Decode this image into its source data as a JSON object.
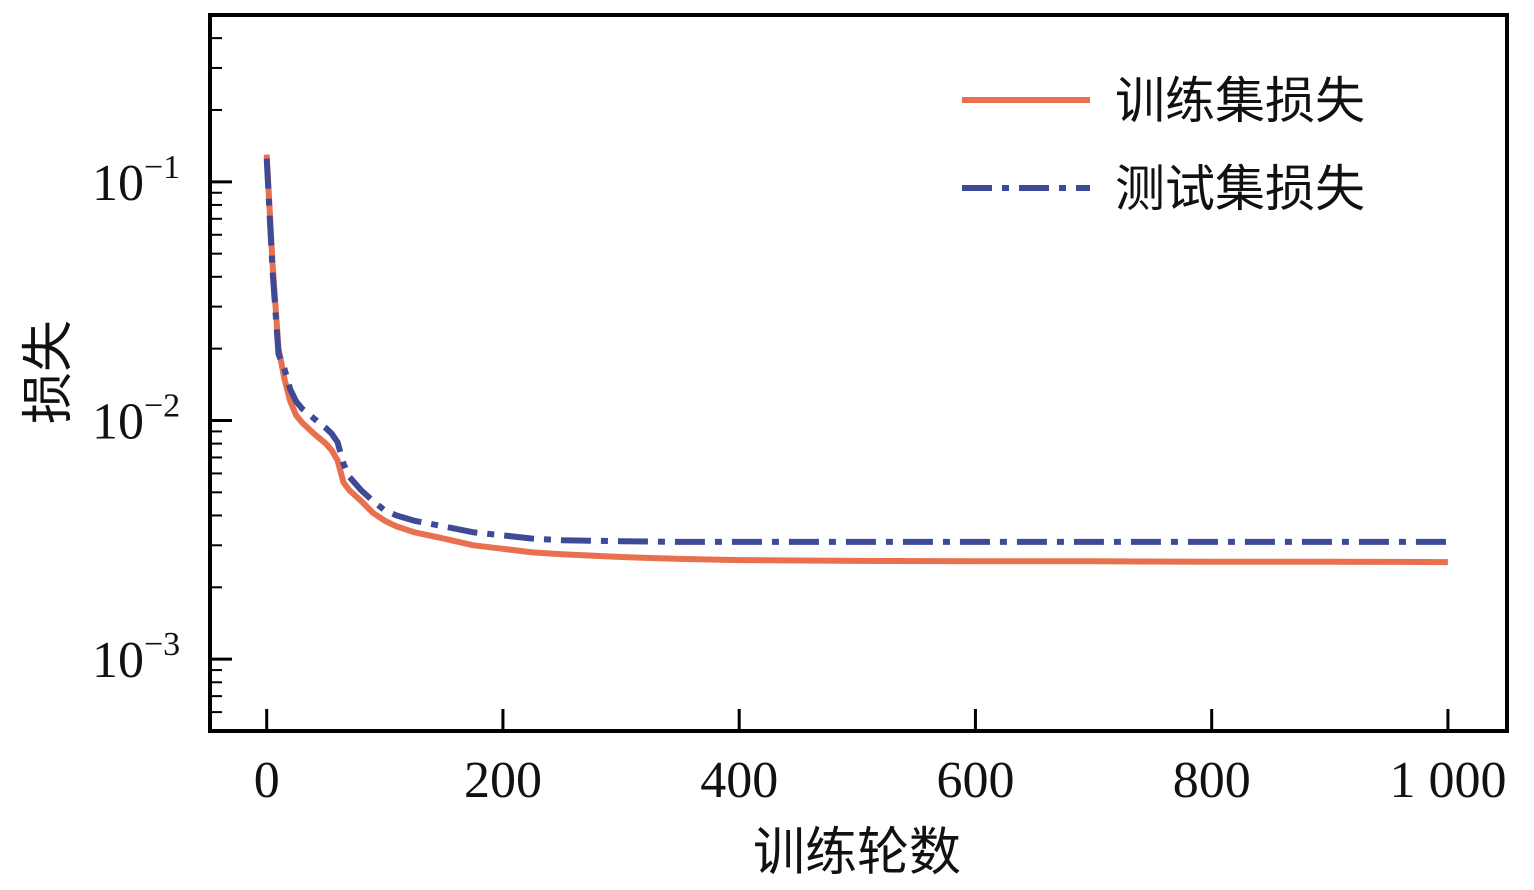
{
  "chart_data": {
    "type": "line",
    "xlabel": "训练轮数",
    "ylabel": "损失",
    "x_scale": "linear",
    "y_scale": "log",
    "xlim": [
      -48,
      1050
    ],
    "ylim": [
      0.0005,
      0.5
    ],
    "x_ticks": [
      0,
      200,
      400,
      600,
      800,
      1000
    ],
    "x_tick_labels": [
      "0",
      "200",
      "400",
      "600",
      "800",
      "1 000"
    ],
    "y_ticks": [
      {
        "value": 0.1,
        "base": "10",
        "exp": "−1"
      },
      {
        "value": 0.01,
        "base": "10",
        "exp": "−2"
      },
      {
        "value": 0.001,
        "base": "10",
        "exp": "−3"
      }
    ],
    "grid": false,
    "legend_position": "top-right",
    "series": [
      {
        "name": "训练集损失",
        "color": "#E8704F",
        "style": "solid",
        "x": [
          0,
          5,
          10,
          15,
          20,
          25,
          30,
          40,
          50,
          55,
          60,
          65,
          70,
          80,
          90,
          100,
          110,
          125,
          150,
          175,
          200,
          225,
          250,
          300,
          350,
          400,
          500,
          600,
          700,
          800,
          900,
          1000
        ],
        "y": [
          0.13,
          0.045,
          0.02,
          0.015,
          0.012,
          0.0105,
          0.0098,
          0.0088,
          0.008,
          0.0075,
          0.0068,
          0.0055,
          0.0051,
          0.0046,
          0.0041,
          0.0038,
          0.0036,
          0.0034,
          0.0032,
          0.003,
          0.0029,
          0.0028,
          0.00275,
          0.00268,
          0.00263,
          0.0026,
          0.00258,
          0.00257,
          0.00257,
          0.00256,
          0.00256,
          0.00255
        ]
      },
      {
        "name": "测试集损失",
        "color": "#3F4A96",
        "style": "dashdot",
        "x": [
          0,
          5,
          10,
          15,
          20,
          25,
          30,
          40,
          50,
          55,
          60,
          65,
          70,
          80,
          90,
          100,
          110,
          125,
          150,
          175,
          200,
          225,
          250,
          300,
          350,
          400,
          500,
          600,
          700,
          800,
          900,
          1000
        ],
        "y": [
          0.125,
          0.042,
          0.019,
          0.0165,
          0.0135,
          0.012,
          0.0112,
          0.0102,
          0.0093,
          0.0088,
          0.0081,
          0.0066,
          0.0058,
          0.0051,
          0.0046,
          0.0042,
          0.004,
          0.0038,
          0.0036,
          0.0034,
          0.0033,
          0.0032,
          0.00315,
          0.00312,
          0.0031,
          0.0031,
          0.0031,
          0.0031,
          0.0031,
          0.0031,
          0.0031,
          0.0031
        ]
      }
    ]
  }
}
